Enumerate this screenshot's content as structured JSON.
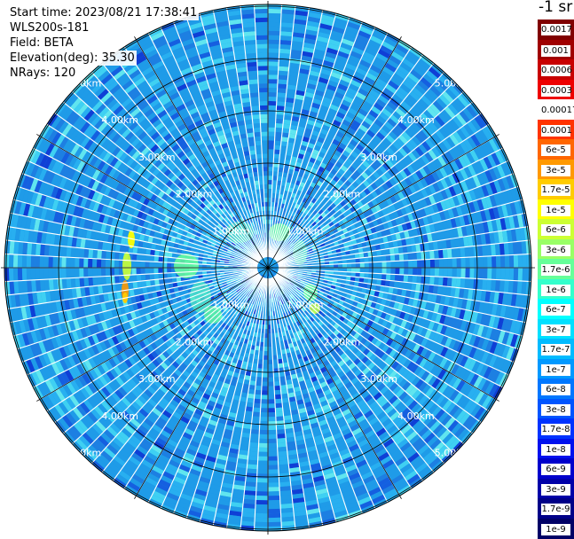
{
  "header": {
    "start_time": "Start time: 2023/08/21 17:38:41",
    "instrument": "WLS200s-181",
    "field": "Field: BETA",
    "elevation": "Elevation(deg): 35.30",
    "nrays": "NRays: 120"
  },
  "units_label": "-1 sr",
  "ring_labels": [
    "1.00km",
    "2.00km",
    "3.00km",
    "4.00km",
    "5.00km"
  ],
  "colorbar": [
    {
      "label": "0.0017",
      "color": "#800000"
    },
    {
      "label": "0.001",
      "color": "#a00000"
    },
    {
      "label": "0.0006",
      "color": "#c80000"
    },
    {
      "label": "0.0003",
      "color": "#ee0000"
    },
    {
      "label": "0.00017",
      "color": "#ffffff"
    },
    {
      "label": "0.0001",
      "color": "#ff3300"
    },
    {
      "label": "6e-5",
      "color": "#ff6600"
    },
    {
      "label": "3e-5",
      "color": "#ff9900"
    },
    {
      "label": "1.7e-5",
      "color": "#ffcc00"
    },
    {
      "label": "1e-5",
      "color": "#ffff00"
    },
    {
      "label": "6e-6",
      "color": "#ccff33"
    },
    {
      "label": "3e-6",
      "color": "#99ff66"
    },
    {
      "label": "1.7e-6",
      "color": "#66ff99"
    },
    {
      "label": "1e-6",
      "color": "#33ffcc"
    },
    {
      "label": "6e-7",
      "color": "#00ffff"
    },
    {
      "label": "3e-7",
      "color": "#00e0ff"
    },
    {
      "label": "1.7e-7",
      "color": "#00bbff"
    },
    {
      "label": "1e-7",
      "color": "#0099ff"
    },
    {
      "label": "6e-8",
      "color": "#0077ff"
    },
    {
      "label": "3e-8",
      "color": "#0055ff"
    },
    {
      "label": "1.7e-8",
      "color": "#0033ff"
    },
    {
      "label": "1e-8",
      "color": "#0011ee"
    },
    {
      "label": "6e-9",
      "color": "#0000cc"
    },
    {
      "label": "3e-9",
      "color": "#0000a8"
    },
    {
      "label": "1.7e-9",
      "color": "#000088"
    },
    {
      "label": "1e-9",
      "color": "#000066"
    }
  ]
}
